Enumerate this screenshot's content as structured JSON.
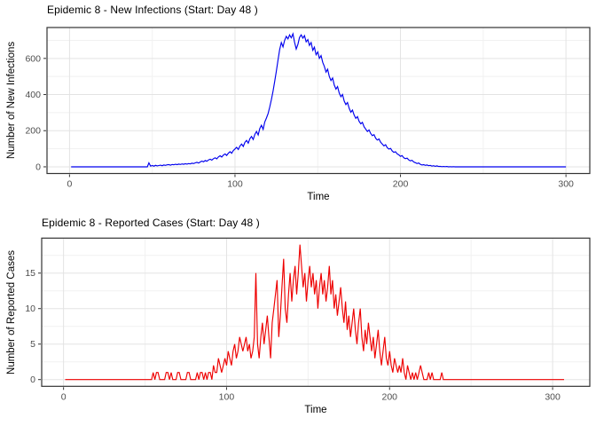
{
  "page": {
    "background": "#FFFFFF"
  },
  "theme": {
    "panel_background": "#FFFFFF",
    "panel_border": "#333333",
    "grid_major": "#E3E3E3",
    "grid_minor": "#F1F1F1",
    "tick_color": "#333333",
    "tick_label_color": "#4D4D4D",
    "title_color": "#000000",
    "axis_title_color": "#000000"
  },
  "chart_data": [
    {
      "type": "line",
      "title": "Epidemic 8 - New Infections (Start: Day 48 )",
      "xlabel": "Time",
      "ylabel": "Number of New Infections",
      "series_name": "new-infections",
      "line_color": "#0000EE",
      "legend": "none",
      "grid": true,
      "xlim": [
        -13.6,
        314.4
      ],
      "ylim": [
        -37,
        771
      ],
      "x_ticks": [
        0,
        100,
        200,
        300
      ],
      "x_minor_ticks": [
        50,
        150,
        250
      ],
      "y_ticks": [
        0,
        200,
        400,
        600
      ],
      "y_minor_ticks": [
        100,
        300,
        500,
        700
      ],
      "points": [
        [
          1,
          0
        ],
        [
          46,
          0
        ],
        [
          47,
          0
        ],
        [
          48,
          22
        ],
        [
          49,
          4
        ],
        [
          50,
          7
        ],
        [
          51,
          4
        ],
        [
          52,
          8
        ],
        [
          53,
          5
        ],
        [
          54,
          7
        ],
        [
          55,
          9
        ],
        [
          56,
          6
        ],
        [
          57,
          10
        ],
        [
          58,
          8
        ],
        [
          59,
          11
        ],
        [
          60,
          12
        ],
        [
          61,
          9
        ],
        [
          62,
          13
        ],
        [
          63,
          11
        ],
        [
          64,
          14
        ],
        [
          65,
          12
        ],
        [
          66,
          15
        ],
        [
          67,
          13
        ],
        [
          68,
          16
        ],
        [
          69,
          14
        ],
        [
          70,
          17
        ],
        [
          71,
          15
        ],
        [
          72,
          18
        ],
        [
          73,
          16
        ],
        [
          74,
          20
        ],
        [
          75,
          18
        ],
        [
          76,
          22
        ],
        [
          77,
          25
        ],
        [
          78,
          21
        ],
        [
          79,
          27
        ],
        [
          80,
          32
        ],
        [
          81,
          28
        ],
        [
          82,
          35
        ],
        [
          83,
          31
        ],
        [
          84,
          38
        ],
        [
          85,
          42
        ],
        [
          86,
          37
        ],
        [
          87,
          45
        ],
        [
          88,
          50
        ],
        [
          89,
          44
        ],
        [
          90,
          55
        ],
        [
          91,
          61
        ],
        [
          92,
          54
        ],
        [
          93,
          65
        ],
        [
          94,
          71
        ],
        [
          95,
          63
        ],
        [
          96,
          76
        ],
        [
          97,
          84
        ],
        [
          98,
          75
        ],
        [
          99,
          90
        ],
        [
          100,
          99
        ],
        [
          101,
          108
        ],
        [
          102,
          96
        ],
        [
          103,
          116
        ],
        [
          104,
          126
        ],
        [
          105,
          113
        ],
        [
          106,
          136
        ],
        [
          107,
          146
        ],
        [
          108,
          131
        ],
        [
          109,
          156
        ],
        [
          110,
          168
        ],
        [
          111,
          151
        ],
        [
          112,
          180
        ],
        [
          113,
          196
        ],
        [
          114,
          176
        ],
        [
          115,
          212
        ],
        [
          116,
          230
        ],
        [
          117,
          207
        ],
        [
          118,
          248
        ],
        [
          119,
          270
        ],
        [
          120,
          295
        ],
        [
          121,
          330
        ],
        [
          122,
          372
        ],
        [
          123,
          420
        ],
        [
          124,
          472
        ],
        [
          125,
          530
        ],
        [
          126,
          592
        ],
        [
          127,
          648
        ],
        [
          128,
          688
        ],
        [
          129,
          664
        ],
        [
          130,
          700
        ],
        [
          131,
          722
        ],
        [
          132,
          708
        ],
        [
          133,
          730
        ],
        [
          134,
          714
        ],
        [
          135,
          736
        ],
        [
          136,
          690
        ],
        [
          137,
          652
        ],
        [
          138,
          678
        ],
        [
          139,
          716
        ],
        [
          140,
          730
        ],
        [
          141,
          712
        ],
        [
          142,
          726
        ],
        [
          143,
          692
        ],
        [
          144,
          704
        ],
        [
          145,
          672
        ],
        [
          146,
          688
        ],
        [
          147,
          645
        ],
        [
          148,
          662
        ],
        [
          149,
          620
        ],
        [
          150,
          636
        ],
        [
          151,
          600
        ],
        [
          152,
          616
        ],
        [
          153,
          578
        ],
        [
          154,
          556
        ],
        [
          155,
          524
        ],
        [
          156,
          540
        ],
        [
          157,
          500
        ],
        [
          158,
          478
        ],
        [
          159,
          492
        ],
        [
          160,
          452
        ],
        [
          161,
          430
        ],
        [
          162,
          444
        ],
        [
          163,
          408
        ],
        [
          164,
          388
        ],
        [
          165,
          400
        ],
        [
          166,
          364
        ],
        [
          167,
          344
        ],
        [
          168,
          356
        ],
        [
          169,
          324
        ],
        [
          170,
          302
        ],
        [
          171,
          314
        ],
        [
          172,
          286
        ],
        [
          173,
          268
        ],
        [
          174,
          278
        ],
        [
          175,
          252
        ],
        [
          176,
          238
        ],
        [
          177,
          246
        ],
        [
          178,
          222
        ],
        [
          179,
          208
        ],
        [
          180,
          196
        ],
        [
          181,
          204
        ],
        [
          182,
          184
        ],
        [
          183,
          172
        ],
        [
          184,
          178
        ],
        [
          185,
          158
        ],
        [
          186,
          148
        ],
        [
          187,
          154
        ],
        [
          188,
          136
        ],
        [
          189,
          126
        ],
        [
          190,
          116
        ],
        [
          191,
          122
        ],
        [
          192,
          106
        ],
        [
          193,
          98
        ],
        [
          194,
          102
        ],
        [
          195,
          88
        ],
        [
          196,
          80
        ],
        [
          197,
          84
        ],
        [
          198,
          72
        ],
        [
          199,
          66
        ],
        [
          200,
          58
        ],
        [
          201,
          62
        ],
        [
          202,
          50
        ],
        [
          203,
          45
        ],
        [
          204,
          48
        ],
        [
          205,
          38
        ],
        [
          206,
          33
        ],
        [
          207,
          36
        ],
        [
          208,
          27
        ],
        [
          209,
          23
        ],
        [
          210,
          18
        ],
        [
          211,
          21
        ],
        [
          212,
          14
        ],
        [
          213,
          10
        ],
        [
          214,
          12
        ],
        [
          215,
          8
        ],
        [
          216,
          10
        ],
        [
          217,
          6
        ],
        [
          218,
          8
        ],
        [
          219,
          4
        ],
        [
          220,
          6
        ],
        [
          221,
          3
        ],
        [
          222,
          5
        ],
        [
          223,
          2
        ],
        [
          224,
          3
        ],
        [
          225,
          1
        ],
        [
          226,
          2
        ],
        [
          227,
          1
        ],
        [
          228,
          2
        ],
        [
          229,
          0
        ],
        [
          230,
          1
        ],
        [
          231,
          0
        ],
        [
          232,
          1
        ],
        [
          233,
          0
        ],
        [
          300,
          0
        ]
      ]
    },
    {
      "type": "line",
      "title": "Epidemic 8 - Reported Cases (Start: Day 48 )",
      "xlabel": "Time",
      "ylabel": "Number of Reported Cases",
      "series_name": "reported-cases",
      "line_color": "#EE0000",
      "legend": "none",
      "grid": true,
      "xlim": [
        -13.4,
        322.8
      ],
      "ylim": [
        -0.95,
        19.93
      ],
      "x_ticks": [
        0,
        100,
        200,
        300
      ],
      "x_minor_ticks": [
        50,
        150,
        250
      ],
      "y_ticks": [
        0,
        5,
        10,
        15
      ],
      "y_minor_ticks": [
        2.5,
        7.5,
        12.5,
        17.5
      ],
      "points": [
        [
          1,
          0
        ],
        [
          54,
          0
        ],
        [
          55,
          1
        ],
        [
          56,
          0
        ],
        [
          57,
          1
        ],
        [
          58,
          1
        ],
        [
          59,
          0
        ],
        [
          62,
          0
        ],
        [
          63,
          1
        ],
        [
          64,
          1
        ],
        [
          65,
          0
        ],
        [
          66,
          1
        ],
        [
          67,
          0
        ],
        [
          69,
          0
        ],
        [
          70,
          1
        ],
        [
          71,
          1
        ],
        [
          72,
          0
        ],
        [
          75,
          0
        ],
        [
          76,
          1
        ],
        [
          77,
          1
        ],
        [
          78,
          0
        ],
        [
          81,
          0
        ],
        [
          82,
          1
        ],
        [
          83,
          0
        ],
        [
          84,
          1
        ],
        [
          85,
          1
        ],
        [
          86,
          0
        ],
        [
          87,
          1
        ],
        [
          88,
          0
        ],
        [
          89,
          1
        ],
        [
          90,
          1
        ],
        [
          91,
          0
        ],
        [
          92,
          2
        ],
        [
          93,
          1
        ],
        [
          94,
          1
        ],
        [
          95,
          3
        ],
        [
          96,
          2
        ],
        [
          97,
          1
        ],
        [
          98,
          2
        ],
        [
          99,
          3
        ],
        [
          100,
          2
        ],
        [
          101,
          4
        ],
        [
          102,
          3
        ],
        [
          103,
          2
        ],
        [
          104,
          4
        ],
        [
          105,
          5
        ],
        [
          106,
          3
        ],
        [
          107,
          4
        ],
        [
          108,
          6
        ],
        [
          109,
          5
        ],
        [
          110,
          4
        ],
        [
          111,
          5
        ],
        [
          112,
          6
        ],
        [
          113,
          4
        ],
        [
          114,
          5
        ],
        [
          115,
          3
        ],
        [
          116,
          4
        ],
        [
          117,
          6
        ],
        [
          118,
          15
        ],
        [
          119,
          5
        ],
        [
          120,
          3
        ],
        [
          121,
          6
        ],
        [
          122,
          8
        ],
        [
          123,
          5
        ],
        [
          124,
          7
        ],
        [
          125,
          9
        ],
        [
          126,
          6
        ],
        [
          127,
          3
        ],
        [
          128,
          8
        ],
        [
          129,
          10
        ],
        [
          130,
          12
        ],
        [
          131,
          14
        ],
        [
          132,
          6
        ],
        [
          133,
          9
        ],
        [
          134,
          13
        ],
        [
          135,
          17
        ],
        [
          136,
          10
        ],
        [
          137,
          8
        ],
        [
          138,
          12
        ],
        [
          139,
          15
        ],
        [
          140,
          11
        ],
        [
          141,
          14
        ],
        [
          142,
          16
        ],
        [
          143,
          12
        ],
        [
          144,
          15
        ],
        [
          145,
          19
        ],
        [
          146,
          16
        ],
        [
          147,
          13
        ],
        [
          148,
          15
        ],
        [
          149,
          11
        ],
        [
          150,
          14
        ],
        [
          151,
          16
        ],
        [
          152,
          13
        ],
        [
          153,
          15
        ],
        [
          154,
          12
        ],
        [
          155,
          14
        ],
        [
          156,
          10
        ],
        [
          157,
          13
        ],
        [
          158,
          15
        ],
        [
          159,
          12
        ],
        [
          160,
          14
        ],
        [
          161,
          11
        ],
        [
          162,
          13
        ],
        [
          163,
          16
        ],
        [
          164,
          12
        ],
        [
          165,
          14
        ],
        [
          166,
          10
        ],
        [
          167,
          12
        ],
        [
          168,
          9
        ],
        [
          169,
          11
        ],
        [
          170,
          13
        ],
        [
          171,
          10
        ],
        [
          172,
          8
        ],
        [
          173,
          11
        ],
        [
          174,
          7
        ],
        [
          175,
          9
        ],
        [
          176,
          6
        ],
        [
          177,
          8
        ],
        [
          178,
          10
        ],
        [
          179,
          7
        ],
        [
          180,
          5
        ],
        [
          181,
          8
        ],
        [
          182,
          10
        ],
        [
          183,
          6
        ],
        [
          184,
          4
        ],
        [
          185,
          7
        ],
        [
          186,
          5
        ],
        [
          187,
          8
        ],
        [
          188,
          6
        ],
        [
          189,
          4
        ],
        [
          190,
          6
        ],
        [
          191,
          3
        ],
        [
          192,
          5
        ],
        [
          193,
          7
        ],
        [
          194,
          4
        ],
        [
          195,
          2
        ],
        [
          196,
          4
        ],
        [
          197,
          6
        ],
        [
          198,
          3
        ],
        [
          199,
          2
        ],
        [
          200,
          4
        ],
        [
          201,
          2
        ],
        [
          202,
          1
        ],
        [
          203,
          3
        ],
        [
          204,
          2
        ],
        [
          205,
          1
        ],
        [
          206,
          2
        ],
        [
          207,
          1
        ],
        [
          208,
          3
        ],
        [
          209,
          1
        ],
        [
          210,
          0
        ],
        [
          211,
          2
        ],
        [
          212,
          1
        ],
        [
          213,
          0
        ],
        [
          214,
          1
        ],
        [
          215,
          0
        ],
        [
          216,
          1
        ],
        [
          217,
          0
        ],
        [
          218,
          1
        ],
        [
          219,
          2
        ],
        [
          220,
          1
        ],
        [
          221,
          0
        ],
        [
          223,
          0
        ],
        [
          224,
          1
        ],
        [
          225,
          0
        ],
        [
          226,
          1
        ],
        [
          227,
          0
        ],
        [
          231,
          0
        ],
        [
          232,
          1
        ],
        [
          233,
          0
        ],
        [
          307,
          0
        ]
      ]
    }
  ]
}
